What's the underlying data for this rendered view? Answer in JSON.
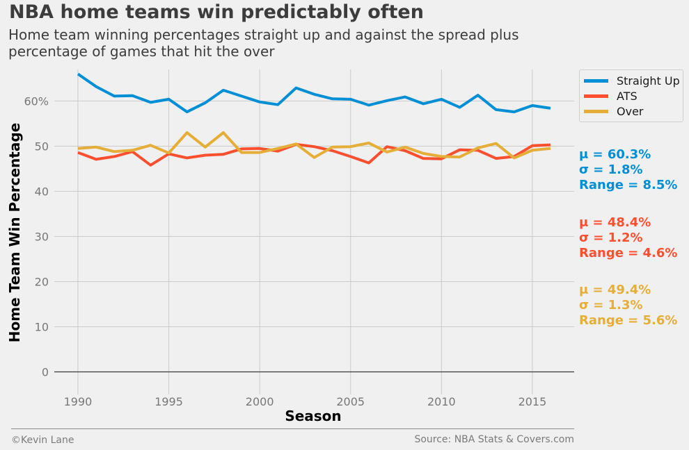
{
  "title": "NBA home teams win predictably often",
  "subtitle": "Home team winning percentages straight up and against the spread plus percentage of games that hit the over",
  "footer": {
    "credit": "©Kevin Lane",
    "source": "Source: NBA Stats & Covers.com"
  },
  "colors": {
    "straight_up": "#008fd5",
    "ats": "#fc4f30",
    "over": "#e5ae38",
    "grid": "#cbcbcb",
    "background": "#f0f0f0"
  },
  "stats": {
    "straight_up": {
      "mu": "μ = 60.3%",
      "sigma": "σ = 1.8%",
      "range": "Range = 8.5%"
    },
    "ats": {
      "mu": "μ = 48.4%",
      "sigma": "σ = 1.2%",
      "range": "Range = 4.6%"
    },
    "over": {
      "mu": "μ = 49.4%",
      "sigma": "σ = 1.3%",
      "range": "Range = 5.6%"
    }
  },
  "chart_data": {
    "type": "line",
    "title": "NBA home teams win predictably often",
    "xlabel": "Season",
    "ylabel": "Home Team Win Percentage",
    "xlim": [
      1988.7,
      2017.3
    ],
    "ylim": [
      -5,
      67
    ],
    "grid": true,
    "legend_position": "outside-top-right",
    "x_ticks": [
      1990,
      1995,
      2000,
      2005,
      2010,
      2015
    ],
    "x_tick_labels": [
      "1990",
      "1995",
      "2000",
      "2005",
      "2010",
      "2015"
    ],
    "y_ticks": [
      0,
      10,
      20,
      30,
      40,
      50,
      60
    ],
    "y_tick_labels": [
      "0",
      "10",
      "20",
      "30",
      "40",
      "50",
      "60%"
    ],
    "x": [
      1990,
      1991,
      1992,
      1993,
      1994,
      1995,
      1996,
      1997,
      1998,
      1999,
      2000,
      2001,
      2002,
      2003,
      2004,
      2005,
      2006,
      2007,
      2008,
      2009,
      2010,
      2011,
      2012,
      2013,
      2014,
      2015,
      2016
    ],
    "series": [
      {
        "name": "Straight Up",
        "key": "straight_up",
        "values": [
          66.0,
          63.2,
          61.1,
          61.2,
          59.7,
          60.4,
          57.6,
          59.6,
          62.4,
          61.1,
          59.8,
          59.2,
          62.9,
          61.5,
          60.5,
          60.4,
          59.1,
          60.1,
          60.9,
          59.4,
          60.4,
          58.6,
          61.3,
          58.1,
          57.6,
          59.0,
          58.4
        ]
      },
      {
        "name": "ATS",
        "key": "ats",
        "values": [
          48.6,
          47.1,
          47.7,
          48.8,
          45.8,
          48.3,
          47.4,
          48.0,
          48.2,
          49.4,
          49.5,
          48.9,
          50.4,
          49.9,
          49.0,
          47.7,
          46.3,
          49.9,
          49.0,
          47.3,
          47.2,
          49.2,
          49.1,
          47.3,
          47.7,
          50.1,
          50.3
        ]
      },
      {
        "name": "Over",
        "key": "over",
        "values": [
          49.5,
          49.8,
          48.8,
          49.1,
          50.2,
          48.5,
          53.0,
          49.8,
          53.0,
          48.6,
          48.6,
          49.5,
          50.5,
          47.5,
          49.8,
          49.9,
          50.7,
          48.7,
          49.8,
          48.4,
          47.7,
          47.6,
          49.6,
          50.6,
          47.4,
          49.1,
          49.5
        ]
      }
    ]
  }
}
